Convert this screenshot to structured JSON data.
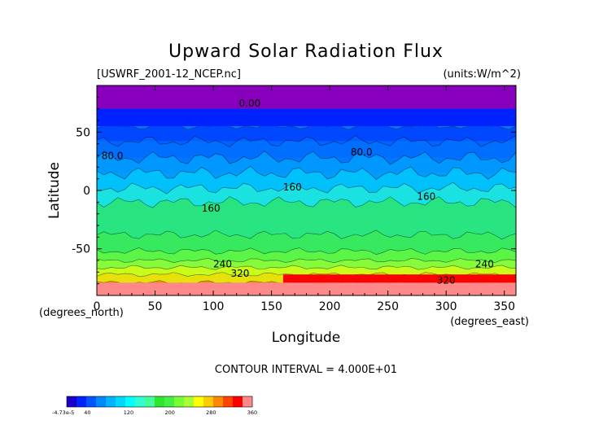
{
  "chart_data": {
    "type": "heatmap",
    "title": "Upward Solar Radiation Flux",
    "file_label": "[USWRF_2001-12_NCEP.nc]",
    "units_label": "(units:W/m^2)",
    "xlabel": "Longitude",
    "ylabel": "Latitude",
    "x_unit_label": "(degrees_east)",
    "y_unit_label": "(degrees_north)",
    "xlim": [
      0,
      360
    ],
    "ylim": [
      -90,
      90
    ],
    "xticks": [
      "0",
      "50",
      "100",
      "150",
      "200",
      "250",
      "300",
      "350"
    ],
    "xtick_values": [
      0,
      50,
      100,
      150,
      200,
      250,
      300,
      350
    ],
    "yticks": [
      "50",
      "0",
      "-50"
    ],
    "ytick_values": [
      50,
      0,
      -50
    ],
    "contour_interval_label": "CONTOUR INTERVAL = 4.000E+01",
    "colorbar": {
      "labels": [
        "-4.73e-5",
        "40",
        "120",
        "200",
        "280",
        "360"
      ],
      "label_values": [
        0,
        40,
        120,
        200,
        280,
        360
      ],
      "colors": [
        "#1a00cc",
        "#0022ff",
        "#0055ff",
        "#0088ff",
        "#00b4ff",
        "#00d8ff",
        "#00ffff",
        "#30ffd0",
        "#44ff99",
        "#2ee62e",
        "#44f044",
        "#77ff33",
        "#aaff33",
        "#ffff00",
        "#ffcc00",
        "#ff8800",
        "#ff4400",
        "#ff0000",
        "#ff8888"
      ]
    },
    "contour_labels": [
      {
        "text": "0.00",
        "lon": 122,
        "lat": 72
      },
      {
        "text": "80.0",
        "lon": 4,
        "lat": 27
      },
      {
        "text": "80.0",
        "lon": 218,
        "lat": 30
      },
      {
        "text": "160",
        "lon": 160,
        "lat": 0
      },
      {
        "text": "160",
        "lon": 90,
        "lat": -18
      },
      {
        "text": "160",
        "lon": 275,
        "lat": -8
      },
      {
        "text": "240",
        "lon": 100,
        "lat": -66
      },
      {
        "text": "320",
        "lon": 115,
        "lat": -74
      },
      {
        "text": "240",
        "lon": 325,
        "lat": -66
      },
      {
        "text": "320",
        "lon": 292,
        "lat": -80
      }
    ],
    "zonal_bands": [
      {
        "lat_from": 90,
        "lat_to": 70,
        "value": 0
      },
      {
        "lat_from": 70,
        "lat_to": 55,
        "value": 40
      },
      {
        "lat_from": 55,
        "lat_to": 42,
        "value": 60
      },
      {
        "lat_from": 42,
        "lat_to": 28,
        "value": 80
      },
      {
        "lat_from": 28,
        "lat_to": 15,
        "value": 100
      },
      {
        "lat_from": 15,
        "lat_to": 2,
        "value": 130
      },
      {
        "lat_from": 2,
        "lat_to": -10,
        "value": 160
      },
      {
        "lat_from": -10,
        "lat_to": -25,
        "value": 175
      },
      {
        "lat_from": -25,
        "lat_to": -38,
        "value": 190
      },
      {
        "lat_from": -38,
        "lat_to": -52,
        "value": 200
      },
      {
        "lat_from": -52,
        "lat_to": -60,
        "value": 220
      },
      {
        "lat_from": -60,
        "lat_to": -66,
        "value": 245
      },
      {
        "lat_from": -66,
        "lat_to": -72,
        "value": 270
      },
      {
        "lat_from": -72,
        "lat_to": -79,
        "value": 310
      },
      {
        "lat_from": -79,
        "lat_to": -90,
        "value": 360
      }
    ],
    "grid": false,
    "legend": "colorbar bottom-left"
  }
}
